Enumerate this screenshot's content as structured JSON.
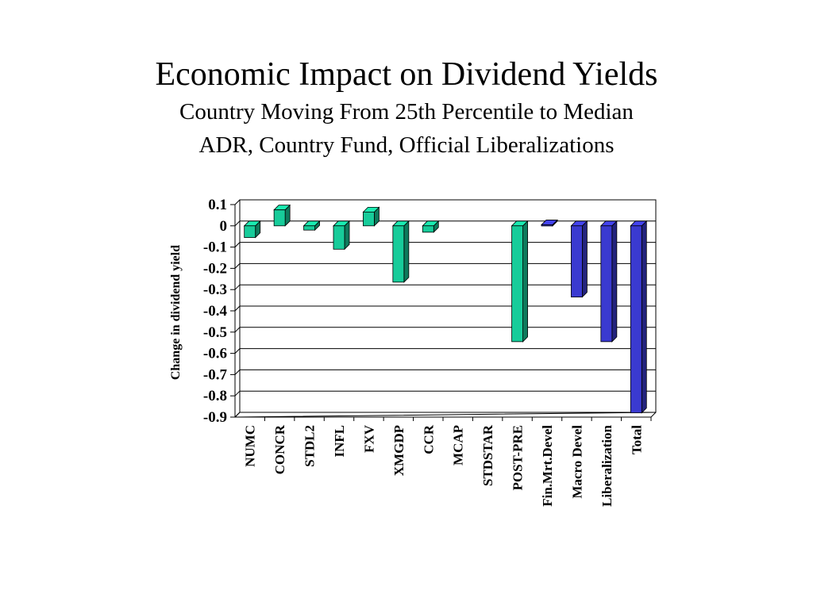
{
  "slide": {
    "title": "Economic Impact on Dividend Yields",
    "subtitle_1": "Country Moving From 25th Percentile to Median",
    "subtitle_2": "ADR, Country Fund, Official Liberalizations"
  },
  "colors": {
    "green_bar": "#17cc9a",
    "blue_bar": "#3a3ad0",
    "gridline": "#000000",
    "axis": "#000000"
  },
  "chart_data": {
    "type": "bar",
    "title": "",
    "xlabel": "",
    "ylabel": "Change in dividend yield",
    "ylim": [
      -0.9,
      0.1
    ],
    "yticks": [
      "0.1",
      "0",
      "-0.1",
      "-0.2",
      "-0.3",
      "-0.4",
      "-0.5",
      "-0.6",
      "-0.7",
      "-0.8",
      "-0.9"
    ],
    "grid": true,
    "legend": "none",
    "categories": [
      "NUMC",
      "CONCR",
      "STDL2",
      "INFL",
      "FXV",
      "XMGDP",
      "CCR",
      "MCAP",
      "STDSTAR",
      "POST-PRE",
      "Fin.Mrt.Devel",
      "Macro Devel",
      "Liberalization",
      "Total"
    ],
    "values": [
      -0.055,
      0.075,
      -0.02,
      -0.11,
      0.065,
      -0.265,
      -0.03,
      0,
      0,
      -0.545,
      0.005,
      -0.335,
      -0.545,
      -0.88
    ],
    "bar_colors": [
      "green",
      "green",
      "green",
      "green",
      "green",
      "green",
      "green",
      "green",
      "green",
      "green",
      "blue",
      "blue",
      "blue",
      "blue"
    ]
  }
}
